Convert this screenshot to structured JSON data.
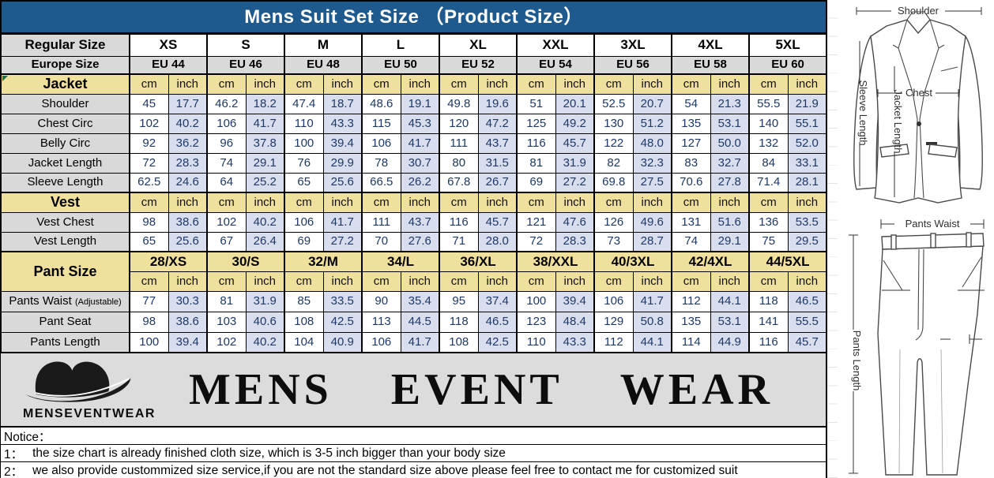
{
  "title": "Mens Suit Set Size （Product Size）",
  "labels": {
    "regular": "Regular Size",
    "europe": "Europe Size"
  },
  "units": {
    "cm": "cm",
    "inch": "inch"
  },
  "sizes": {
    "regular": [
      "XS",
      "S",
      "M",
      "L",
      "XL",
      "XXL",
      "3XL",
      "4XL",
      "5XL"
    ],
    "europe": [
      "EU 44",
      "EU 46",
      "EU 48",
      "EU 50",
      "EU 52",
      "EU 54",
      "EU 56",
      "EU 58",
      "EU 60"
    ]
  },
  "jacket": {
    "label": "Jacket",
    "rows": [
      {
        "label": "Shoulder",
        "cm": [
          "45",
          "46.2",
          "47.4",
          "48.6",
          "49.8",
          "51",
          "52.5",
          "54",
          "55.5"
        ],
        "inch": [
          "17.7",
          "18.2",
          "18.7",
          "19.1",
          "19.6",
          "20.1",
          "20.7",
          "21.3",
          "21.9"
        ]
      },
      {
        "label": "Chest Circ",
        "cm": [
          "102",
          "106",
          "110",
          "115",
          "120",
          "125",
          "130",
          "135",
          "140"
        ],
        "inch": [
          "40.2",
          "41.7",
          "43.3",
          "45.3",
          "47.2",
          "49.2",
          "51.2",
          "53.1",
          "55.1"
        ]
      },
      {
        "label": "Belly Circ",
        "cm": [
          "92",
          "96",
          "100",
          "106",
          "111",
          "116",
          "122",
          "127",
          "132"
        ],
        "inch": [
          "36.2",
          "37.8",
          "39.4",
          "41.7",
          "43.7",
          "45.7",
          "48.0",
          "50.0",
          "52.0"
        ]
      },
      {
        "label": "Jacket Length",
        "cm": [
          "72",
          "74",
          "76",
          "78",
          "80",
          "81",
          "82",
          "83",
          "84"
        ],
        "inch": [
          "28.3",
          "29.1",
          "29.9",
          "30.7",
          "31.5",
          "31.9",
          "32.3",
          "32.7",
          "33.1"
        ]
      },
      {
        "label": "Sleeve Length",
        "cm": [
          "62.5",
          "64",
          "65",
          "66.5",
          "67.8",
          "69",
          "69.8",
          "70.6",
          "71.4"
        ],
        "inch": [
          "24.6",
          "25.2",
          "25.6",
          "26.2",
          "26.7",
          "27.2",
          "27.5",
          "27.8",
          "28.1"
        ]
      }
    ]
  },
  "vest": {
    "label": "Vest",
    "rows": [
      {
        "label": "Vest Chest",
        "cm": [
          "98",
          "102",
          "106",
          "111",
          "116",
          "121",
          "126",
          "131",
          "136"
        ],
        "inch": [
          "38.6",
          "40.2",
          "41.7",
          "43.7",
          "45.7",
          "47.6",
          "49.6",
          "51.6",
          "53.5"
        ]
      },
      {
        "label": "Vest Length",
        "cm": [
          "65",
          "67",
          "69",
          "70",
          "71",
          "72",
          "73",
          "74",
          "75"
        ],
        "inch": [
          "25.6",
          "26.4",
          "27.2",
          "27.6",
          "28.0",
          "28.3",
          "28.7",
          "29.1",
          "29.5"
        ]
      }
    ]
  },
  "pant": {
    "label": "Pant Size",
    "sizes": [
      "28/XS",
      "30/S",
      "32/M",
      "34/L",
      "36/XL",
      "38/XXL",
      "40/3XL",
      "42/4XL",
      "44/5XL"
    ],
    "rows": [
      {
        "label": "Pants Waist",
        "label_suffix": "(Adjustable)",
        "cm": [
          "77",
          "81",
          "85",
          "90",
          "95",
          "100",
          "106",
          "112",
          "118"
        ],
        "inch": [
          "30.3",
          "31.9",
          "33.5",
          "35.4",
          "37.4",
          "39.4",
          "41.7",
          "44.1",
          "46.5"
        ]
      },
      {
        "label": "Pant Seat",
        "cm": [
          "98",
          "103",
          "108",
          "113",
          "118",
          "123",
          "129",
          "135",
          "141"
        ],
        "inch": [
          "38.6",
          "40.6",
          "42.5",
          "44.5",
          "46.5",
          "48.4",
          "50.8",
          "53.1",
          "55.5"
        ]
      },
      {
        "label": "Pants Length",
        "cm": [
          "100",
          "102",
          "104",
          "106",
          "108",
          "110",
          "112",
          "114",
          "116"
        ],
        "inch": [
          "39.4",
          "40.2",
          "40.9",
          "41.7",
          "42.5",
          "43.3",
          "44.1",
          "44.9",
          "45.7"
        ]
      }
    ]
  },
  "brand": {
    "logo_text": "MENSEVENTWEAR",
    "name": "MENS EVENT WEAR"
  },
  "notice": {
    "label": "Notice：",
    "item1_num": "1：",
    "item1_text": "the size chart is already finished cloth size, which is 3-5 inch bigger than your body size",
    "item2_num": "2：",
    "item2_text": "we also provide custommized size service,if you are not the standard size above please feel free to contact me for customized suit"
  },
  "diagrams": {
    "jacket": {
      "shoulder": "Shoulder",
      "chest": "Chest",
      "jacket_length": "Jacket Length",
      "sleeve_length": "Sleeve Length"
    },
    "pants": {
      "waist": "Pants Waist",
      "length": "Pants Length"
    }
  },
  "colors": {
    "title_bar": "#1E5A8E",
    "section_header": "#F0E09E",
    "row_label": "#D9D9D9",
    "inch_cell": "#D9DEEF",
    "value_text": "#1F3864",
    "corner_flag": "#1E7145"
  }
}
